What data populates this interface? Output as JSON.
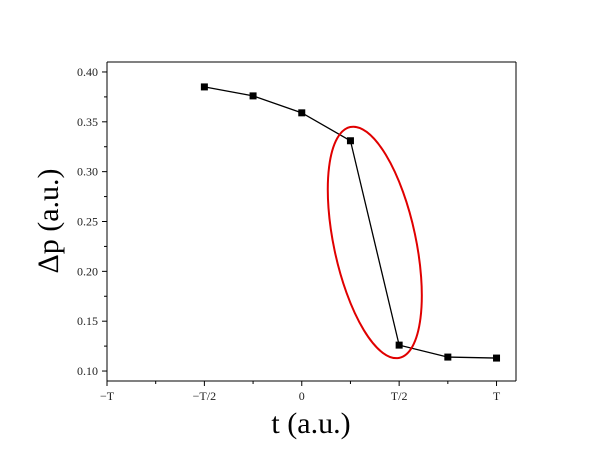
{
  "chart_data": {
    "type": "line",
    "title": "",
    "xlabel": "t (a.u.)",
    "ylabel": "Δp (a.u.)",
    "x_tick_labels": [
      "−T",
      "−T/2",
      "0",
      "T/2",
      "T"
    ],
    "x_tick_values": [
      -1,
      -0.5,
      0,
      0.5,
      1
    ],
    "y_tick_labels": [
      "0.10",
      "0.15",
      "0.20",
      "0.25",
      "0.30",
      "0.35",
      "0.40"
    ],
    "y_tick_values": [
      0.1,
      0.15,
      0.2,
      0.25,
      0.3,
      0.35,
      0.4
    ],
    "xlim": [
      -1,
      1.1
    ],
    "ylim": [
      0.09,
      0.41
    ],
    "grid": false,
    "series": [
      {
        "color": "#000000",
        "marker": "square",
        "x": [
          -0.5,
          -0.25,
          0,
          0.25,
          0.5,
          0.75,
          1.0
        ],
        "y": [
          0.385,
          0.376,
          0.359,
          0.331,
          0.126,
          0.114,
          0.113
        ]
      }
    ],
    "annotations": [
      {
        "type": "ellipse",
        "color": "#e00000",
        "x_center": 0.375,
        "y_center": 0.229,
        "note": "highlights steep drop between t=T/4 and t=T/2"
      }
    ]
  }
}
